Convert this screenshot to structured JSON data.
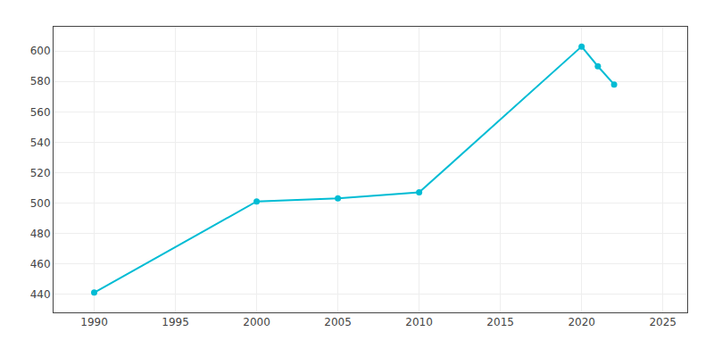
{
  "chart_data": {
    "type": "line",
    "x": [
      1990,
      2000,
      2005,
      2010,
      2020,
      2021,
      2022
    ],
    "values": [
      441,
      501,
      503,
      507,
      603,
      590,
      578
    ],
    "color": "#00BCD4",
    "marker": "circle",
    "xlim": [
      1987.5,
      2026.5
    ],
    "ylim": [
      428,
      616
    ],
    "xticks": [
      1990,
      1995,
      2000,
      2005,
      2010,
      2015,
      2020,
      2025
    ],
    "yticks": [
      440,
      460,
      480,
      500,
      520,
      540,
      560,
      580,
      600
    ],
    "grid": true
  }
}
